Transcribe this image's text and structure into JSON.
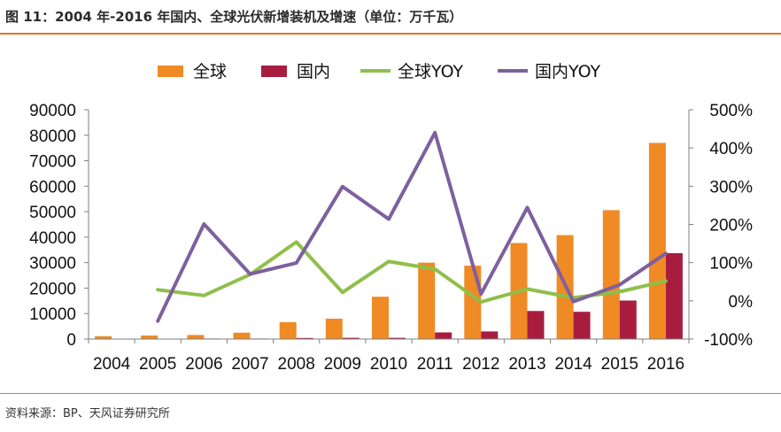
{
  "header": {
    "title": "图 11：2004 年-2016 年国内、全球光伏新增装机及增速（单位：万千瓦）"
  },
  "footer": {
    "source": "资料来源：BP、天风证券研究所"
  },
  "colors": {
    "global_bar": "#f08a24",
    "china_bar": "#a81d3f",
    "global_yoy": "#8fbf4a",
    "china_yoy": "#7e609e",
    "accent_rule": "#e8731e"
  },
  "chart_data": {
    "type": "bar",
    "categories": [
      "2004",
      "2005",
      "2006",
      "2007",
      "2008",
      "2009",
      "2010",
      "2011",
      "2012",
      "2013",
      "2014",
      "2015",
      "2016"
    ],
    "series": [
      {
        "name": "全球",
        "kind": "bar",
        "axis": "left",
        "values": [
          1100,
          1400,
          1600,
          2500,
          6600,
          8000,
          16600,
          30000,
          28800,
          37700,
          40800,
          50600,
          77000
        ]
      },
      {
        "name": "国内",
        "kind": "bar",
        "axis": "left",
        "values": [
          100,
          100,
          200,
          200,
          400,
          500,
          500,
          2600,
          3000,
          11000,
          10700,
          15100,
          33700
        ]
      },
      {
        "name": "全球YOY",
        "kind": "line",
        "axis": "right",
        "values": [
          null,
          29,
          14,
          69,
          154,
          22,
          103,
          83,
          -3,
          31,
          8,
          24,
          52
        ]
      },
      {
        "name": "国内YOY",
        "kind": "line",
        "axis": "right",
        "values": [
          null,
          -53,
          201,
          70,
          99,
          299,
          214,
          440,
          18,
          244,
          -2,
          42,
          124
        ]
      }
    ],
    "y_left": {
      "min": 0,
      "max": 90000,
      "ticks": [
        "0",
        "10000",
        "20000",
        "30000",
        "40000",
        "50000",
        "60000",
        "70000",
        "80000",
        "90000"
      ]
    },
    "y_right": {
      "min": -100,
      "max": 500,
      "ticks": [
        "-100%",
        "0%",
        "100%",
        "200%",
        "300%",
        "400%",
        "500%"
      ]
    },
    "legend": {
      "position": "top",
      "items": [
        "全球",
        "国内",
        "全球YOY",
        "国内YOY"
      ]
    },
    "grid": false
  }
}
